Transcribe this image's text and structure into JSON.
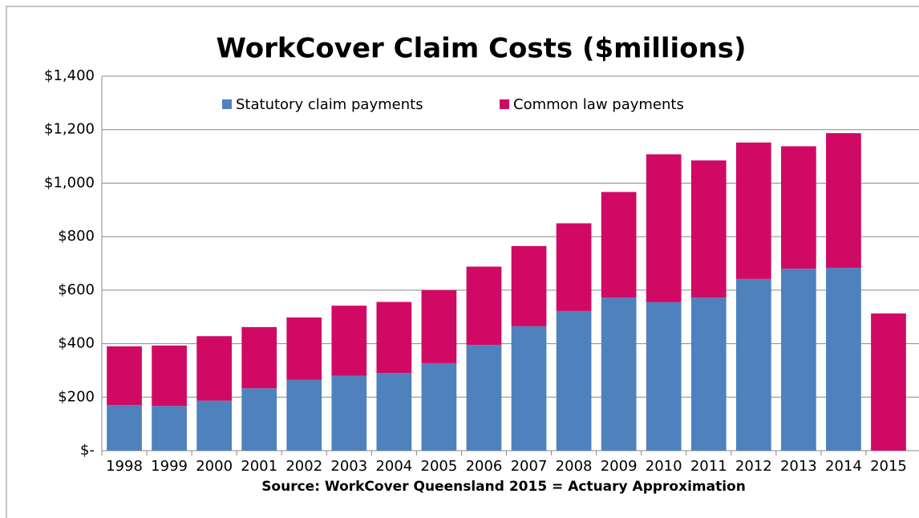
{
  "chart_data": {
    "type": "stacked_bar",
    "title": "WorkCover Claim Costs ($millions)",
    "source": "Source: WorkCover Queensland 2015 = Actuary Approximation",
    "categories": [
      "1998",
      "1999",
      "2000",
      "2001",
      "2002",
      "2003",
      "2004",
      "2005",
      "2006",
      "2007",
      "2008",
      "2009",
      "2010",
      "2011",
      "2012",
      "2013",
      "2014",
      "2015"
    ],
    "series": [
      {
        "name": "Statutory claim payments",
        "color": "#4f81bd",
        "values": [
          170,
          167,
          187,
          233,
          265,
          280,
          290,
          327,
          395,
          465,
          522,
          572,
          555,
          572,
          642,
          680,
          683,
          0
        ]
      },
      {
        "name": "Common law payments",
        "color": "#d00a64",
        "values": [
          220,
          226,
          241,
          229,
          233,
          262,
          266,
          273,
          293,
          300,
          328,
          395,
          553,
          513,
          510,
          458,
          504,
          513
        ]
      }
    ],
    "ylim": [
      0,
      1400
    ],
    "yticks": [
      {
        "value": 0,
        "label": "$-"
      },
      {
        "value": 200,
        "label": "$200"
      },
      {
        "value": 400,
        "label": "$400"
      },
      {
        "value": 600,
        "label": "$600"
      },
      {
        "value": 800,
        "label": "$800"
      },
      {
        "value": 1000,
        "label": "$1,000"
      },
      {
        "value": 1200,
        "label": "$1,200"
      },
      {
        "value": 1400,
        "label": "$1,400"
      }
    ],
    "grid": true,
    "legend": "top"
  }
}
